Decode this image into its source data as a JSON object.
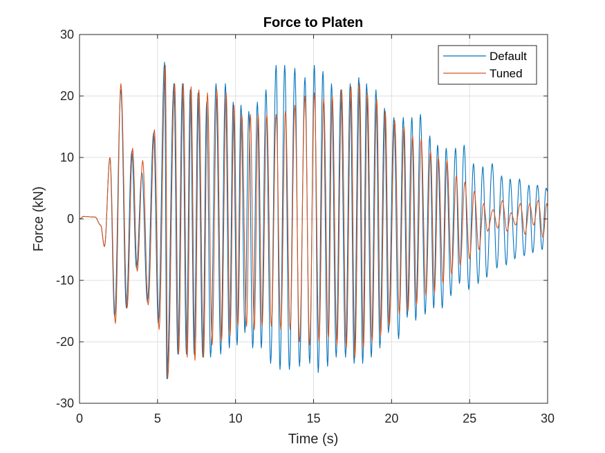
{
  "chart_data": {
    "type": "line",
    "title": "Force to Platen",
    "xlabel": "Time (s)",
    "ylabel": "Force (kN)",
    "xlim": [
      0,
      30
    ],
    "ylim": [
      -30,
      30
    ],
    "xticks": [
      0,
      5,
      10,
      15,
      20,
      25,
      30
    ],
    "yticks": [
      -30,
      -20,
      -10,
      0,
      10,
      20,
      30
    ],
    "xtick_labels": [
      "0",
      "5",
      "10",
      "15",
      "20",
      "25",
      "30"
    ],
    "ytick_labels": [
      "-30",
      "-20",
      "-10",
      "0",
      "10",
      "20",
      "30"
    ],
    "grid": true,
    "legend_position": "top-right",
    "series": [
      {
        "name": "Default",
        "color": "#0072BD",
        "peaks": [
          [
            0.25,
            0.4
          ],
          [
            1.0,
            0.3
          ],
          [
            1.35,
            -1.0
          ],
          [
            1.6,
            -4.5
          ],
          [
            1.95,
            10
          ],
          [
            2.25,
            -16
          ],
          [
            2.65,
            21
          ],
          [
            3.0,
            -14.5
          ],
          [
            3.35,
            11
          ],
          [
            3.65,
            -8
          ],
          [
            4.0,
            7.5
          ],
          [
            4.35,
            -13.5
          ],
          [
            4.75,
            14
          ],
          [
            5.05,
            -17
          ],
          [
            5.45,
            25.5
          ],
          [
            5.6,
            -26
          ],
          [
            6.05,
            22
          ],
          [
            6.3,
            -22
          ],
          [
            6.6,
            22
          ],
          [
            6.85,
            -22
          ],
          [
            7.1,
            21
          ],
          [
            7.35,
            -22
          ],
          [
            7.6,
            20.5
          ],
          [
            7.9,
            -22.5
          ],
          [
            8.15,
            19
          ],
          [
            8.4,
            -22.5
          ],
          [
            8.75,
            22
          ],
          [
            9.05,
            -22
          ],
          [
            9.35,
            22
          ],
          [
            9.6,
            -21
          ],
          [
            9.85,
            19
          ],
          [
            10.1,
            -20.5
          ],
          [
            10.35,
            18.5
          ],
          [
            10.6,
            -18.5
          ],
          [
            10.85,
            17.5
          ],
          [
            11.1,
            -21
          ],
          [
            11.4,
            19
          ],
          [
            11.65,
            -21
          ],
          [
            11.95,
            21
          ],
          [
            12.25,
            -23.5
          ],
          [
            12.6,
            25
          ],
          [
            12.85,
            -24.5
          ],
          [
            13.15,
            25
          ],
          [
            13.45,
            -24.5
          ],
          [
            13.8,
            24.5
          ],
          [
            14.1,
            -24
          ],
          [
            14.45,
            23
          ],
          [
            14.75,
            -23.5
          ],
          [
            15.05,
            25
          ],
          [
            15.3,
            -25
          ],
          [
            15.6,
            24
          ],
          [
            15.9,
            -24
          ],
          [
            16.15,
            22
          ],
          [
            16.45,
            -22.5
          ],
          [
            16.75,
            21
          ],
          [
            17.05,
            -22.5
          ],
          [
            17.35,
            22
          ],
          [
            17.6,
            -23.5
          ],
          [
            17.9,
            23
          ],
          [
            18.15,
            -23.5
          ],
          [
            18.4,
            22
          ],
          [
            18.7,
            -22.5
          ],
          [
            19.0,
            21
          ],
          [
            19.25,
            -21
          ],
          [
            19.55,
            18
          ],
          [
            19.8,
            -18.5
          ],
          [
            20.15,
            16.5
          ],
          [
            20.45,
            -19.5
          ],
          [
            20.75,
            16.5
          ],
          [
            21.0,
            -16
          ],
          [
            21.3,
            16.5
          ],
          [
            21.55,
            -16.5
          ],
          [
            21.85,
            17
          ],
          [
            22.15,
            -15.5
          ],
          [
            22.45,
            13.5
          ],
          [
            22.7,
            -14.5
          ],
          [
            22.95,
            12
          ],
          [
            23.25,
            -14.5
          ],
          [
            23.5,
            11.5
          ],
          [
            23.8,
            -12.5
          ],
          [
            24.1,
            11.5
          ],
          [
            24.35,
            -10.5
          ],
          [
            24.65,
            12
          ],
          [
            24.95,
            -11.5
          ],
          [
            25.25,
            9
          ],
          [
            25.55,
            -10.5
          ],
          [
            25.85,
            8.5
          ],
          [
            26.1,
            -9.5
          ],
          [
            26.45,
            9
          ],
          [
            26.75,
            -8
          ],
          [
            27.05,
            7
          ],
          [
            27.35,
            -7.5
          ],
          [
            27.6,
            6.5
          ],
          [
            27.9,
            -6.5
          ],
          [
            28.2,
            6.5
          ],
          [
            28.5,
            -6
          ],
          [
            28.8,
            5.5
          ],
          [
            29.05,
            -5.5
          ],
          [
            29.35,
            5.5
          ],
          [
            29.65,
            -5
          ],
          [
            29.9,
            5
          ],
          [
            30.0,
            4.5
          ]
        ]
      },
      {
        "name": "Tuned",
        "color": "#D95319",
        "peaks": [
          [
            0.25,
            0.4
          ],
          [
            1.0,
            0.3
          ],
          [
            1.35,
            -1.0
          ],
          [
            1.6,
            -4.5
          ],
          [
            1.95,
            10
          ],
          [
            2.3,
            -17
          ],
          [
            2.65,
            22
          ],
          [
            3.05,
            -14.5
          ],
          [
            3.4,
            11.5
          ],
          [
            3.7,
            -8.5
          ],
          [
            4.05,
            9.5
          ],
          [
            4.4,
            -14
          ],
          [
            4.8,
            14.5
          ],
          [
            5.1,
            -18
          ],
          [
            5.5,
            25
          ],
          [
            5.65,
            -26
          ],
          [
            6.1,
            22
          ],
          [
            6.35,
            -22
          ],
          [
            6.65,
            22
          ],
          [
            6.9,
            -22.5
          ],
          [
            7.15,
            21.5
          ],
          [
            7.4,
            -23
          ],
          [
            7.65,
            21
          ],
          [
            7.95,
            -22.5
          ],
          [
            8.2,
            20.5
          ],
          [
            8.5,
            -20.5
          ],
          [
            8.8,
            21
          ],
          [
            9.1,
            -20
          ],
          [
            9.4,
            20.5
          ],
          [
            9.65,
            -19
          ],
          [
            9.9,
            18.5
          ],
          [
            10.15,
            -17.5
          ],
          [
            10.4,
            17
          ],
          [
            10.7,
            -17.5
          ],
          [
            10.95,
            17
          ],
          [
            11.2,
            -18
          ],
          [
            11.45,
            17
          ],
          [
            11.7,
            -17.5
          ],
          [
            12.0,
            17
          ],
          [
            12.3,
            -17.5
          ],
          [
            12.6,
            17
          ],
          [
            12.9,
            -18
          ],
          [
            13.2,
            17.5
          ],
          [
            13.5,
            -18
          ],
          [
            13.8,
            18.5
          ],
          [
            14.1,
            -20
          ],
          [
            14.45,
            20
          ],
          [
            14.75,
            -20.5
          ],
          [
            15.05,
            20.5
          ],
          [
            15.35,
            -20
          ],
          [
            15.65,
            19.5
          ],
          [
            15.95,
            -19.5
          ],
          [
            16.2,
            20
          ],
          [
            16.5,
            -20.5
          ],
          [
            16.8,
            21
          ],
          [
            17.1,
            -21
          ],
          [
            17.4,
            21.5
          ],
          [
            17.65,
            -22.5
          ],
          [
            17.95,
            22
          ],
          [
            18.2,
            -21
          ],
          [
            18.45,
            20.5
          ],
          [
            18.75,
            -20
          ],
          [
            19.05,
            19.5
          ],
          [
            19.3,
            -19
          ],
          [
            19.6,
            17.5
          ],
          [
            19.85,
            -17.5
          ],
          [
            20.2,
            16
          ],
          [
            20.5,
            -15.5
          ],
          [
            20.8,
            15
          ],
          [
            21.05,
            -15
          ],
          [
            21.35,
            13.5
          ],
          [
            21.6,
            -14
          ],
          [
            21.9,
            13
          ],
          [
            22.2,
            -12.5
          ],
          [
            22.5,
            11
          ],
          [
            22.75,
            -12
          ],
          [
            23.0,
            10
          ],
          [
            23.3,
            -10.5
          ],
          [
            23.55,
            9.5
          ],
          [
            23.85,
            -9
          ],
          [
            24.15,
            7
          ],
          [
            24.4,
            -7.5
          ],
          [
            24.7,
            6
          ],
          [
            25.0,
            -6.5
          ],
          [
            25.3,
            4.5
          ],
          [
            25.6,
            -5
          ],
          [
            25.9,
            2.5
          ],
          [
            26.15,
            -2
          ],
          [
            26.5,
            1.5
          ],
          [
            26.8,
            -1.5
          ],
          [
            27.1,
            3
          ],
          [
            27.4,
            -2
          ],
          [
            27.65,
            1
          ],
          [
            27.95,
            -1
          ],
          [
            28.25,
            2.5
          ],
          [
            28.55,
            -2.5
          ],
          [
            28.85,
            2.5
          ],
          [
            29.1,
            -1
          ],
          [
            29.4,
            3
          ],
          [
            29.7,
            -3
          ],
          [
            29.95,
            2.5
          ],
          [
            30.0,
            2.0
          ]
        ]
      }
    ]
  }
}
